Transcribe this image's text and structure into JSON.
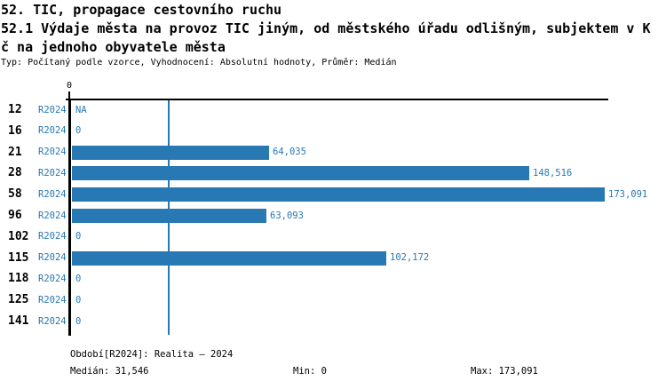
{
  "header": {
    "title_line1": "52. TIC, propagace cestovního ruchu",
    "title_line2": "52.1 Výdaje města na provoz TIC jiným, od městského úřadu odlišným, subjektem v K",
    "title_line3": "č na jednoho obyvatele města",
    "meta": "Typ: Počítaný podle vzorce, Vyhodnocení: Absolutní hodnoty, Průměr: Medián"
  },
  "chart_data": {
    "type": "bar",
    "orientation": "horizontal",
    "title": "52.1 Výdaje města na provoz TIC jiným, od městského úřadu odlišným, subjektem v Kč na jednoho obyvatele města",
    "categories": [
      "12",
      "16",
      "21",
      "28",
      "58",
      "96",
      "102",
      "115",
      "118",
      "125",
      "141"
    ],
    "series": [
      {
        "name": "R2024",
        "values": [
          null,
          0,
          64035,
          148516,
          173091,
          63093,
          0,
          102172,
          0,
          0,
          0
        ],
        "value_labels": [
          "NA",
          "0",
          "64,035",
          "148,516",
          "173,091",
          "63,093",
          "0",
          "102,172",
          "0",
          "0",
          "0"
        ]
      }
    ],
    "xlabel": "",
    "ylabel": "",
    "xlim": [
      0,
      173091
    ],
    "axis_tick_labels": [
      "0"
    ],
    "median_value": 31546,
    "grid": false,
    "legend_position": "none",
    "bar_color": "#2878b4",
    "median_line_color": "#2878b4",
    "axis_color": "#000000"
  },
  "footer": {
    "period": "Období[R2024]: Realita – 2024",
    "median": "Medián: 31,546",
    "min": "Min: 0",
    "max": "Max: 173,091"
  },
  "colors": {
    "accent": "#2878b4",
    "text": "#000000",
    "background": "#ffffff"
  }
}
